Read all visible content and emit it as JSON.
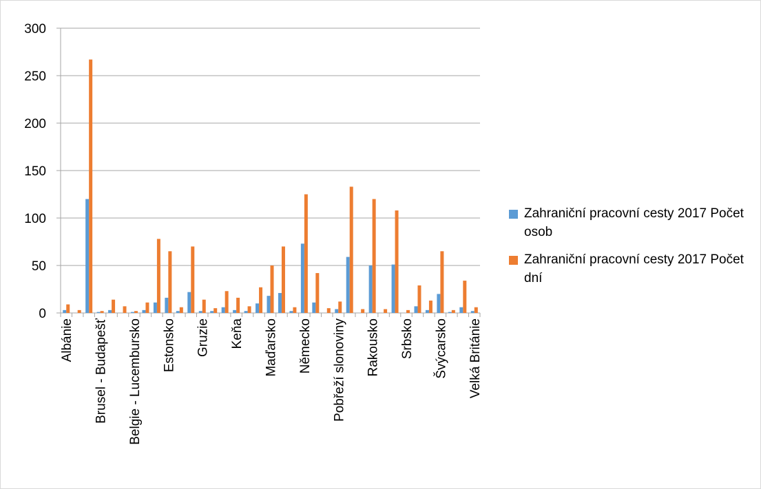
{
  "chart_data": {
    "type": "bar",
    "categories": [
      "Albánie",
      null,
      null,
      "Brusel - Budapešť",
      null,
      null,
      "Belgie - Lucembursko",
      null,
      null,
      "Estonsko",
      null,
      null,
      "Gruzie",
      null,
      null,
      "Keňa",
      null,
      null,
      "Maďarsko",
      null,
      null,
      "Německo",
      null,
      null,
      "Pobřeží slonoviny",
      null,
      null,
      "Rakousko",
      null,
      null,
      "Srbsko",
      null,
      null,
      "Švýcarsko",
      null,
      null,
      "Velká Británie"
    ],
    "series": [
      {
        "name": "Zahraniční pracovní cesty 2017 Počet osob",
        "color": "#5b9bd5",
        "values": [
          3,
          0,
          120,
          1,
          3,
          0,
          1,
          3,
          11,
          16,
          2,
          22,
          2,
          2,
          6,
          3,
          2,
          10,
          18,
          21,
          2,
          73,
          11,
          0,
          4,
          59,
          0,
          50,
          0,
          51,
          0,
          7,
          3,
          20,
          1,
          6,
          2
        ]
      },
      {
        "name": "Zahraniční pracovní cesty 2017 Počet dní",
        "color": "#ed7d31",
        "values": [
          9,
          3,
          267,
          2,
          14,
          7,
          2,
          11,
          78,
          65,
          6,
          70,
          14,
          5,
          23,
          16,
          7,
          27,
          50,
          70,
          6,
          125,
          42,
          5,
          12,
          133,
          4,
          120,
          4,
          108,
          3,
          29,
          13,
          65,
          3,
          34,
          6
        ]
      }
    ],
    "ylim": [
      0,
      300
    ],
    "yticks": [
      0,
      50,
      100,
      150,
      200,
      250,
      300
    ],
    "grid": true,
    "legend": "right"
  }
}
